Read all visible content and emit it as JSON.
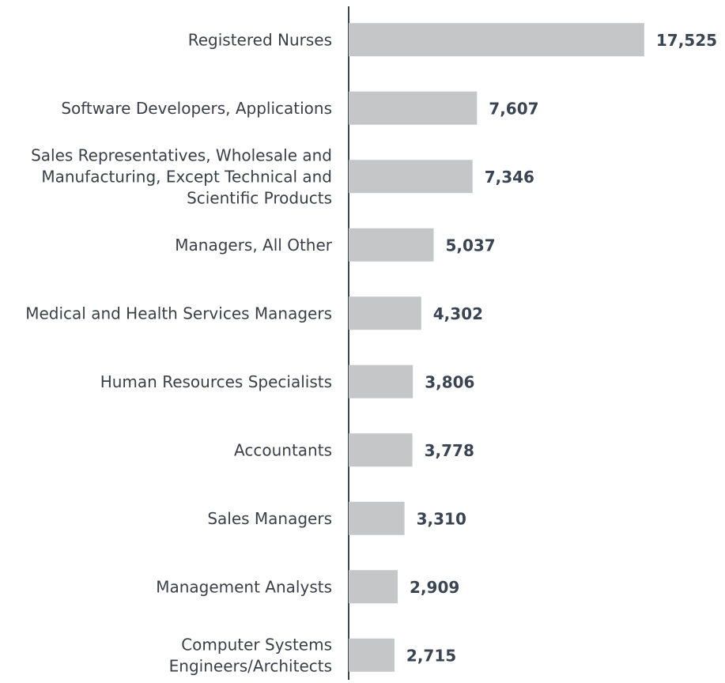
{
  "chart_data": {
    "type": "bar",
    "orientation": "horizontal",
    "categories": [
      [
        "Registered Nurses"
      ],
      [
        "Software Developers, Applications"
      ],
      [
        "Sales Representatives, Wholesale and",
        "Manufacturing, Except Technical and",
        "Scientific Products"
      ],
      [
        "Managers, All Other"
      ],
      [
        "Medical and Health Services Managers"
      ],
      [
        "Human Resources Specialists"
      ],
      [
        "Accountants"
      ],
      [
        "Sales Managers"
      ],
      [
        "Management Analysts"
      ],
      [
        "Computer Systems",
        "Engineers/Architects"
      ]
    ],
    "values": [
      17525,
      7607,
      7346,
      5037,
      4302,
      3806,
      3778,
      3310,
      2909,
      2715
    ],
    "value_labels": [
      "17,525",
      "7,607",
      "7,346",
      "5,037",
      "4,302",
      "3,806",
      "3,778",
      "3,310",
      "2,909",
      "2,715"
    ],
    "color": "#c4c6c8",
    "xlim": [
      0,
      18000
    ]
  }
}
